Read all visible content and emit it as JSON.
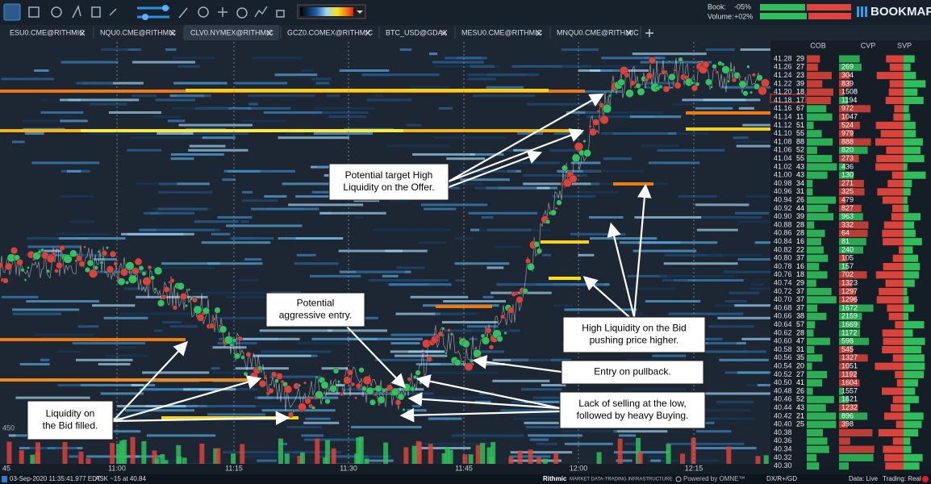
{
  "toolbar": {
    "book_label": "Book:",
    "book_value": "-05%",
    "volume_label": "Volume:",
    "volume_value": "+02%",
    "brand": "BOOKMAP"
  },
  "tabs": [
    {
      "label": "ESU0.CME@RITHMIC",
      "active": false
    },
    {
      "label": "NQU0.CME@RITHMIC",
      "active": false
    },
    {
      "label": "CLV0.NYMEX@RITHMIC",
      "active": true
    },
    {
      "label": "GCZ0.COMEX@RITHMIC",
      "active": false
    },
    {
      "label": "BTC_USD@GDAX",
      "active": false
    },
    {
      "label": "MESU0.CME@RITHMIC",
      "active": false
    },
    {
      "label": "MNQU0.CME@RITHMIC",
      "active": false
    }
  ],
  "chart": {
    "column_headers": [
      "COB",
      "CVP",
      "SVP"
    ],
    "rows": [
      {
        "price": "41.28",
        "cob": 29,
        "cvp": null
      },
      {
        "price": "41.26",
        "cob": 27,
        "cvp": 269
      },
      {
        "price": "41.24",
        "cob": 23,
        "cvp": 304
      },
      {
        "price": "41.22",
        "cob": 39,
        "cvp": 839
      },
      {
        "price": "41.20",
        "cob": 18,
        "cvp": 1508
      },
      {
        "price": "41.18",
        "cob": 17,
        "cvp": 1194
      },
      {
        "price": "41.16",
        "cob": 67,
        "cvp": 972
      },
      {
        "price": "41.14",
        "cob": 11,
        "cvp": 1047
      },
      {
        "price": "41.12",
        "cob": 51,
        "cvp": 524
      },
      {
        "price": "41.10",
        "cob": 55,
        "cvp": 979
      },
      {
        "price": "41.08",
        "cob": 88,
        "cvp": 888
      },
      {
        "price": "41.06",
        "cob": 52,
        "cvp": 820
      },
      {
        "price": "41.04",
        "cob": 55,
        "cvp": 273
      },
      {
        "price": "41.02",
        "cob": 43,
        "cvp": 436
      },
      {
        "price": "41.00",
        "cob": 43,
        "cvp": 130
      },
      {
        "price": "40.98",
        "cob": 34,
        "cvp": 271
      },
      {
        "price": "40.96",
        "cob": 31,
        "cvp": 325
      },
      {
        "price": "40.94",
        "cob": 26,
        "cvp": 479
      },
      {
        "price": "40.92",
        "cob": 44,
        "cvp": 827
      },
      {
        "price": "40.90",
        "cob": 39,
        "cvp": 963
      },
      {
        "price": "40.88",
        "cob": 28,
        "cvp": 332
      },
      {
        "price": "40.86",
        "cob": 28,
        "cvp": 64
      },
      {
        "price": "40.84",
        "cob": 16,
        "cvp": 81
      },
      {
        "price": "40.82",
        "cob": 22,
        "cvp": 240
      },
      {
        "price": "40.80",
        "cob": 37,
        "cvp": 105
      },
      {
        "price": "40.78",
        "cob": 16,
        "cvp": 157
      },
      {
        "price": "40.76",
        "cob": 18,
        "cvp": 702
      },
      {
        "price": "40.74",
        "cob": 29,
        "cvp": 1323
      },
      {
        "price": "40.72",
        "cob": 37,
        "cvp": 1297
      },
      {
        "price": "40.70",
        "cob": 37,
        "cvp": 1296
      },
      {
        "price": "40.68",
        "cob": 37,
        "cvp": 1672
      },
      {
        "price": "40.66",
        "cob": 38,
        "cvp": 2159
      },
      {
        "price": "40.64",
        "cob": 57,
        "cvp": 1669
      },
      {
        "price": "40.62",
        "cob": 28,
        "cvp": 1172
      },
      {
        "price": "40.60",
        "cob": 47,
        "cvp": 598
      },
      {
        "price": "40.58",
        "cob": 31,
        "cvp": 545
      },
      {
        "price": "40.56",
        "cob": 35,
        "cvp": 1327
      },
      {
        "price": "40.54",
        "cob": 20,
        "cvp": 1051
      },
      {
        "price": "40.52",
        "cob": 27,
        "cvp": 1192
      },
      {
        "price": "40.50",
        "cob": 41,
        "cvp": 1604
      },
      {
        "price": "40.48",
        "cob": 26,
        "cvp": 1557
      },
      {
        "price": "40.46",
        "cob": 52,
        "cvp": 1621
      },
      {
        "price": "40.44",
        "cob": 43,
        "cvp": 1232
      },
      {
        "price": "40.42",
        "cob": 21,
        "cvp": 896
      },
      {
        "price": "40.40",
        "cob": 25,
        "cvp": 398
      },
      {
        "price": "40.38",
        "cob": null,
        "cvp": null
      },
      {
        "price": "40.36",
        "cob": null,
        "cvp": null
      },
      {
        "price": "40.34",
        "cob": null,
        "cvp": null
      },
      {
        "price": "40.32",
        "cob": null,
        "cvp": null
      },
      {
        "price": "40.30",
        "cob": null,
        "cvp": null
      }
    ],
    "time_labels": [
      "45",
      "11:00",
      "11:15",
      "11:30",
      "11:45",
      "12:00",
      "12:15"
    ],
    "volume_scale_label": "450",
    "annotations": [
      {
        "lines": [
          "Potential target High",
          "Liquidity on the Offer."
        ]
      },
      {
        "lines": [
          "Potential",
          "aggressive entry."
        ]
      },
      {
        "lines": [
          "High Liquidity on the Bid",
          "pushing price higher."
        ]
      },
      {
        "lines": [
          "Entry on pullback."
        ]
      },
      {
        "lines": [
          "Lack of selling at the low,",
          "followed by heavy Buying."
        ]
      },
      {
        "lines": [
          "Liquidity on",
          "the Bid filled."
        ]
      }
    ]
  },
  "status_bar": {
    "timestamp": "03-Sep-2020 11:35:41.977 EDT",
    "quote": "ASK ~15 at 40.84",
    "provider": "Rithmic",
    "provider_tagline": "MARKET DATA-TRADING INFRASTRUCTURE",
    "powered_by": "Powered by OMNE™",
    "connections": "DX/R+/GD",
    "data_status": "Data: Live",
    "trading_status": "Trading: Real"
  }
}
